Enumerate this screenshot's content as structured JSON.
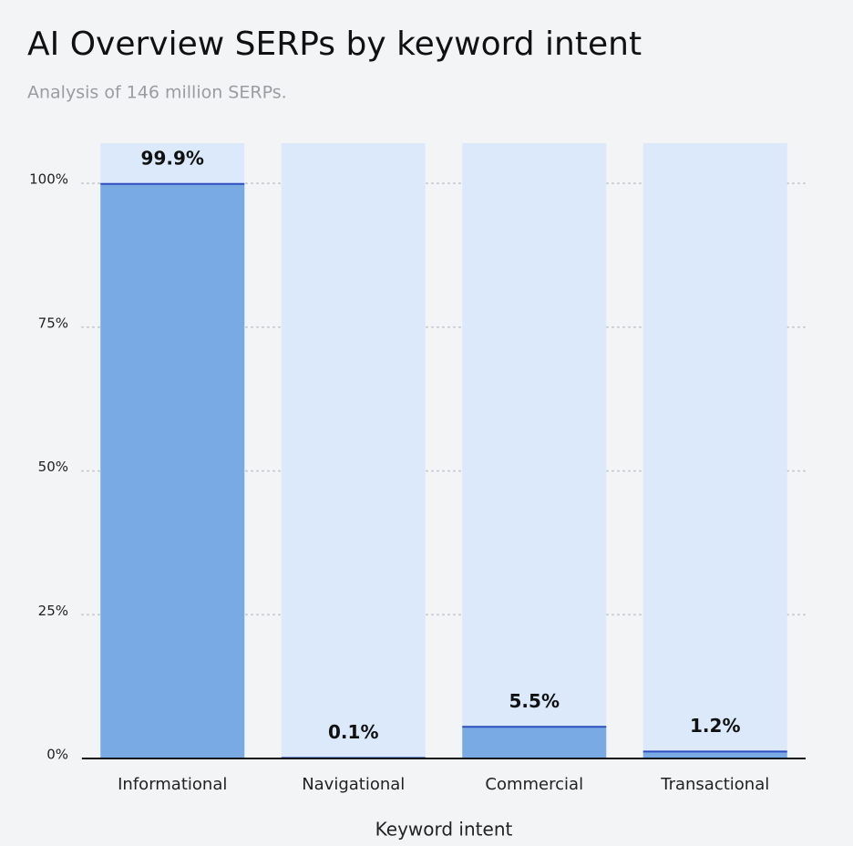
{
  "chart_data": {
    "type": "bar",
    "title": "AI Overview SERPs by keyword intent",
    "subtitle": "Analysis of 146 million SERPs.",
    "x_label": "Keyword intent",
    "categories": [
      "Informational",
      "Navigational",
      "Commercial",
      "Transactional"
    ],
    "values": [
      99.9,
      0.1,
      5.5,
      1.2
    ],
    "value_labels": [
      "99.9%",
      "0.1%",
      "5.5%",
      "1.2%"
    ],
    "color": "#7aaae3",
    "ylim": [
      0,
      107
    ],
    "yticks": [
      {
        "value": 0,
        "label": "0%"
      },
      {
        "value": 25,
        "label": "25%"
      },
      {
        "value": 50,
        "label": "50%"
      },
      {
        "value": 75,
        "label": "75%"
      },
      {
        "value": 100,
        "label": "100%"
      }
    ],
    "grid": true
  }
}
